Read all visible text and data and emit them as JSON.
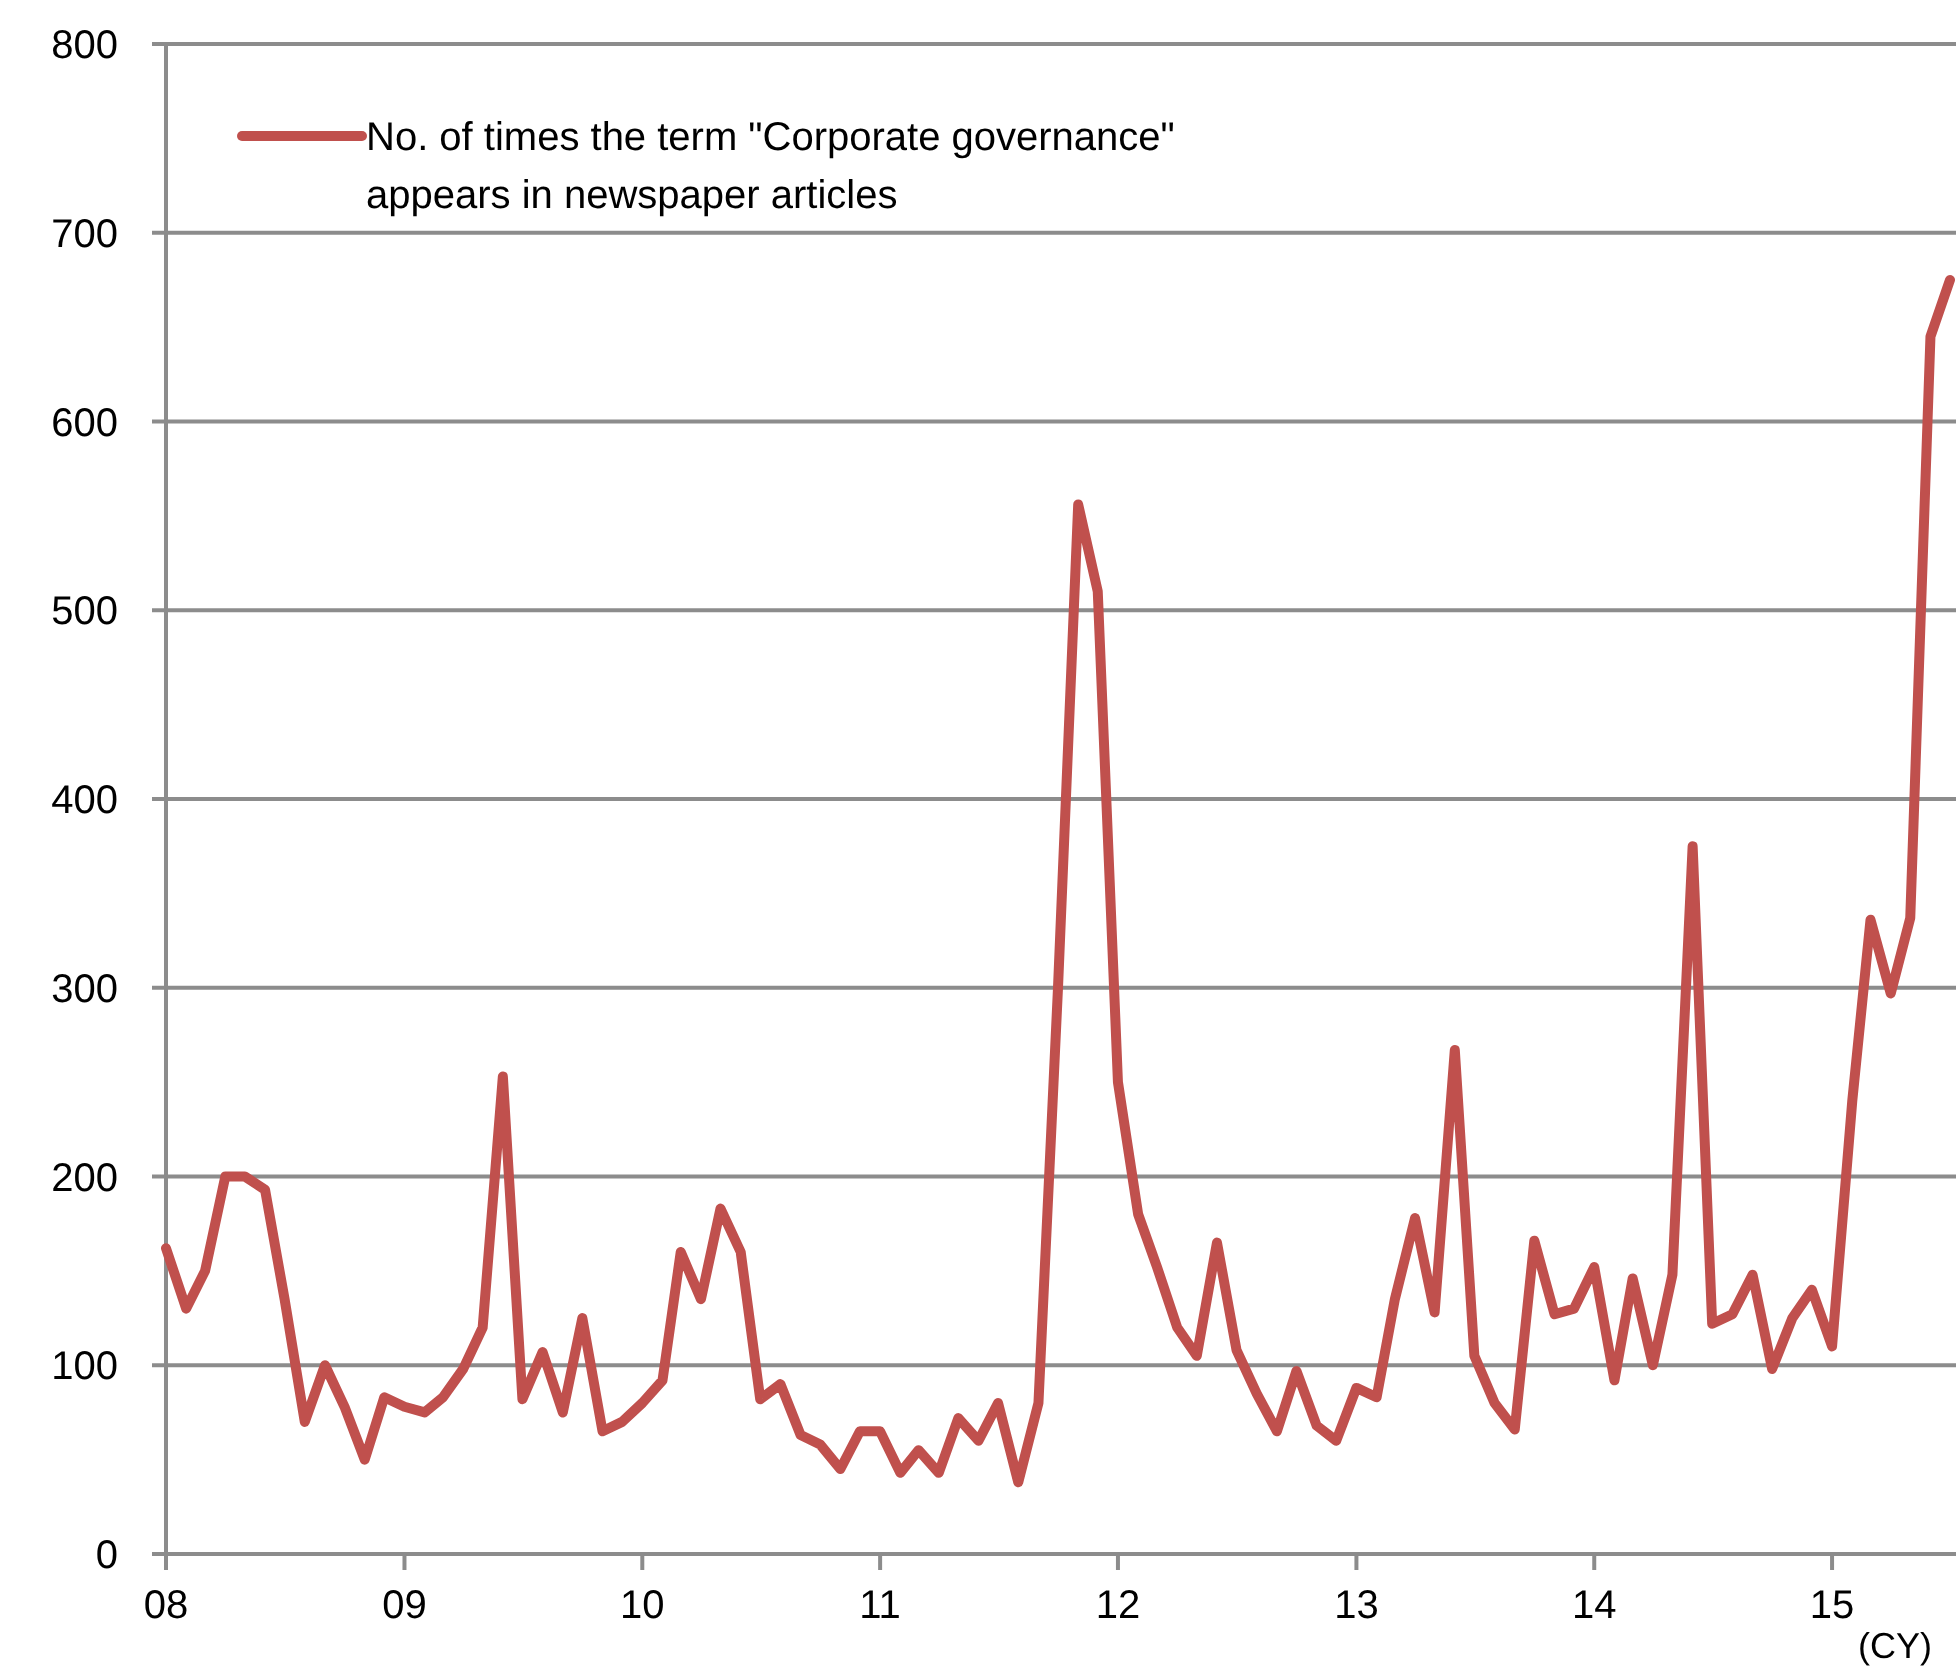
{
  "chart_data": {
    "type": "line",
    "x": [
      "2008-01",
      "2008-02",
      "2008-03",
      "2008-04",
      "2008-05",
      "2008-06",
      "2008-07",
      "2008-08",
      "2008-09",
      "2008-10",
      "2008-11",
      "2008-12",
      "2009-01",
      "2009-02",
      "2009-03",
      "2009-04",
      "2009-05",
      "2009-06",
      "2009-07",
      "2009-08",
      "2009-09",
      "2009-10",
      "2009-11",
      "2009-12",
      "2010-01",
      "2010-02",
      "2010-03",
      "2010-04",
      "2010-05",
      "2010-06",
      "2010-07",
      "2010-08",
      "2010-09",
      "2010-10",
      "2010-11",
      "2010-12",
      "2011-01",
      "2011-02",
      "2011-03",
      "2011-04",
      "2011-05",
      "2011-06",
      "2011-07",
      "2011-08",
      "2011-09",
      "2011-10",
      "2011-11",
      "2011-12",
      "2012-01",
      "2012-02",
      "2012-03",
      "2012-04",
      "2012-05",
      "2012-06",
      "2012-07",
      "2012-08",
      "2012-09",
      "2012-10",
      "2012-11",
      "2012-12",
      "2013-01",
      "2013-02",
      "2013-03",
      "2013-04",
      "2013-05",
      "2013-06",
      "2013-07",
      "2013-08",
      "2013-09",
      "2013-10",
      "2013-11",
      "2013-12",
      "2014-01",
      "2014-02",
      "2014-03",
      "2014-04",
      "2014-05",
      "2014-06",
      "2014-07",
      "2014-08",
      "2014-09",
      "2014-10",
      "2014-11",
      "2014-12",
      "2015-01",
      "2015-02",
      "2015-03",
      "2015-04",
      "2015-05",
      "2015-06",
      "2015-07"
    ],
    "series": [
      {
        "name": "No. of times the term \"Corporate governance\" appears in newspaper articles",
        "color": "#c0504d",
        "values": [
          162,
          130,
          150,
          200,
          200,
          193,
          135,
          70,
          100,
          78,
          50,
          83,
          78,
          75,
          83,
          98,
          120,
          253,
          82,
          107,
          75,
          125,
          65,
          70,
          80,
          92,
          160,
          135,
          183,
          160,
          82,
          90,
          63,
          58,
          45,
          65,
          65,
          43,
          55,
          43,
          72,
          60,
          80,
          38,
          80,
          300,
          556,
          510,
          250,
          180,
          152,
          120,
          105,
          165,
          108,
          85,
          65,
          97,
          68,
          60,
          88,
          83,
          135,
          178,
          128,
          267,
          105,
          80,
          66,
          166,
          127,
          130,
          152,
          92,
          146,
          100,
          148,
          375,
          122,
          127,
          148,
          98,
          125,
          140,
          110,
          240,
          336,
          297,
          337,
          645,
          675
        ]
      }
    ],
    "xlim": [
      "2008-01",
      "2015-07"
    ],
    "xticks": [
      {
        "value": "2008-01",
        "label": "08"
      },
      {
        "value": "2009-01",
        "label": "09"
      },
      {
        "value": "2010-01",
        "label": "10"
      },
      {
        "value": "2011-01",
        "label": "11"
      },
      {
        "value": "2012-01",
        "label": "12"
      },
      {
        "value": "2013-01",
        "label": "13"
      },
      {
        "value": "2014-01",
        "label": "14"
      },
      {
        "value": "2015-01",
        "label": "15"
      }
    ],
    "ylim": [
      0,
      800
    ],
    "yticks": [
      0,
      100,
      200,
      300,
      400,
      500,
      600,
      700,
      800
    ],
    "grid": "y",
    "legend": "top left",
    "marker": "none",
    "line_style": "solid",
    "annotations": [
      "(CY)"
    ]
  }
}
